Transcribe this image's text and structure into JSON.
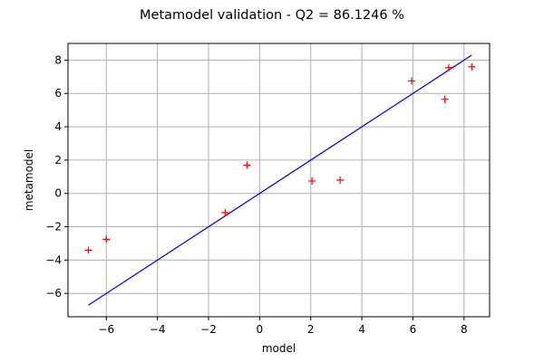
{
  "chart_data": {
    "type": "scatter",
    "title": "Metamodel validation - Q2 = 86.1246 %",
    "xlabel": "model",
    "ylabel": "metamodel",
    "xlim": [
      -7.5,
      9.0
    ],
    "ylim": [
      -7.4,
      9.0
    ],
    "xticks": [
      -6,
      -4,
      -2,
      0,
      2,
      4,
      6,
      8
    ],
    "yticks": [
      -6,
      -4,
      -2,
      0,
      2,
      4,
      6,
      8
    ],
    "x_tick_labels": [
      "−6",
      "−4",
      "−2",
      "0",
      "2",
      "4",
      "6",
      "8"
    ],
    "y_tick_labels": [
      "−6",
      "−4",
      "−2",
      "0",
      "2",
      "4",
      "6",
      "8"
    ],
    "grid": true,
    "colors": {
      "points": "#ff0000",
      "line": "#0000ff",
      "grid": "#b0b0b0"
    },
    "series": [
      {
        "kind": "points",
        "marker": "+",
        "x": [
          -6.7,
          -6.0,
          -1.35,
          -0.5,
          2.05,
          3.15,
          5.95,
          7.25,
          7.4,
          8.3
        ],
        "y": [
          -3.4,
          -2.75,
          -1.15,
          1.7,
          0.75,
          0.8,
          6.75,
          5.65,
          7.55,
          7.6
        ]
      },
      {
        "kind": "line",
        "x": [
          -6.7,
          8.3
        ],
        "y": [
          -6.7,
          8.3
        ]
      }
    ]
  }
}
